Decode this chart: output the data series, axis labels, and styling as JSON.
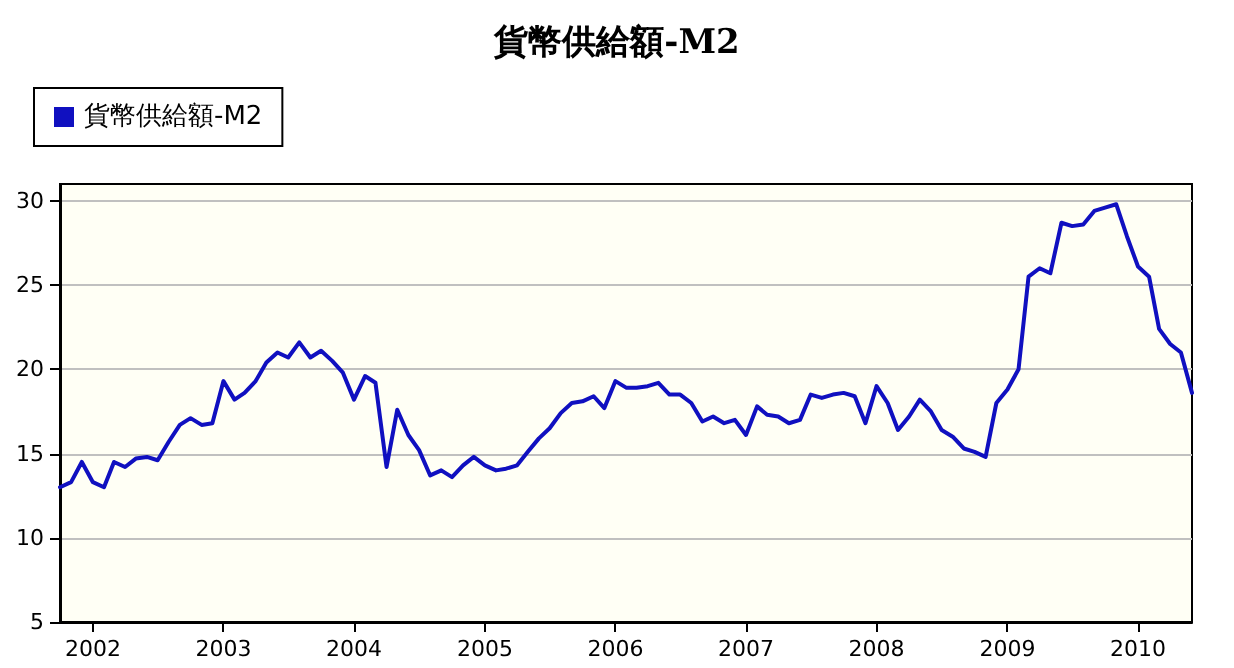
{
  "chart_data": {
    "type": "line",
    "title": "貨幣供給額-M2",
    "x": [
      "2001-10",
      "2001-11",
      "2001-12",
      "2002-01",
      "2002-02",
      "2002-03",
      "2002-04",
      "2002-05",
      "2002-06",
      "2002-07",
      "2002-08",
      "2002-09",
      "2002-10",
      "2002-11",
      "2002-12",
      "2003-01",
      "2003-02",
      "2003-03",
      "2003-04",
      "2003-05",
      "2003-06",
      "2003-07",
      "2003-08",
      "2003-09",
      "2003-10",
      "2003-11",
      "2003-12",
      "2004-01",
      "2004-02",
      "2004-03",
      "2004-04",
      "2004-05",
      "2004-06",
      "2004-07",
      "2004-08",
      "2004-09",
      "2004-10",
      "2004-11",
      "2004-12",
      "2005-01",
      "2005-02",
      "2005-03",
      "2005-04",
      "2005-05",
      "2005-06",
      "2005-07",
      "2005-08",
      "2005-09",
      "2005-10",
      "2005-11",
      "2005-12",
      "2006-01",
      "2006-02",
      "2006-03",
      "2006-04",
      "2006-05",
      "2006-06",
      "2006-07",
      "2006-08",
      "2006-09",
      "2006-10",
      "2006-11",
      "2006-12",
      "2007-01",
      "2007-02",
      "2007-03",
      "2007-04",
      "2007-05",
      "2007-06",
      "2007-07",
      "2007-08",
      "2007-09",
      "2007-10",
      "2007-11",
      "2007-12",
      "2008-01",
      "2008-02",
      "2008-03",
      "2008-04",
      "2008-05",
      "2008-06",
      "2008-07",
      "2008-08",
      "2008-09",
      "2008-10",
      "2008-11",
      "2008-12",
      "2009-01",
      "2009-02",
      "2009-03",
      "2009-04",
      "2009-05",
      "2009-06",
      "2009-07",
      "2009-08",
      "2009-09",
      "2009-10",
      "2009-11",
      "2009-12",
      "2010-01",
      "2010-02",
      "2010-03",
      "2010-04",
      "2010-05",
      "2010-06"
    ],
    "series": [
      {
        "name": "貨幣供給額-M2",
        "color": "#1010c0",
        "values": [
          13.0,
          13.3,
          14.5,
          13.3,
          13.0,
          14.5,
          14.2,
          14.7,
          14.8,
          14.6,
          15.7,
          16.7,
          17.1,
          16.7,
          16.8,
          19.3,
          18.2,
          18.6,
          19.3,
          20.4,
          21.0,
          20.7,
          21.6,
          20.7,
          21.1,
          20.5,
          19.8,
          18.2,
          19.6,
          19.2,
          14.2,
          17.6,
          16.1,
          15.2,
          13.7,
          14.0,
          13.6,
          14.3,
          14.8,
          14.3,
          14.0,
          14.1,
          14.3,
          15.1,
          15.9,
          16.5,
          17.4,
          18.0,
          18.1,
          18.4,
          17.7,
          19.3,
          18.9,
          18.9,
          19.0,
          19.2,
          18.5,
          18.5,
          18.0,
          16.9,
          17.2,
          16.8,
          17.0,
          16.1,
          17.8,
          17.3,
          17.2,
          16.8,
          17.0,
          18.5,
          18.3,
          18.5,
          18.6,
          18.4,
          16.8,
          19.0,
          18.0,
          16.4,
          17.2,
          18.2,
          17.5,
          16.4,
          16.0,
          15.3,
          15.1,
          14.8,
          18.0,
          18.8,
          20.0,
          25.5,
          26.0,
          25.7,
          28.7,
          28.5,
          28.6,
          29.4,
          29.6,
          29.8,
          27.9,
          26.1,
          25.5,
          22.4,
          21.5,
          21.0,
          18.6
        ]
      }
    ],
    "xlim": [
      "2001-10",
      "2010-06"
    ],
    "xticks": [
      "2002",
      "2003",
      "2004",
      "2005",
      "2006",
      "2007",
      "2008",
      "2009",
      "2010"
    ],
    "ylim": [
      5,
      31
    ],
    "yticks": [
      5,
      10,
      15,
      20,
      25,
      30
    ],
    "grid": "y",
    "legend": "top left",
    "marker": "none",
    "line_style": "solid"
  }
}
